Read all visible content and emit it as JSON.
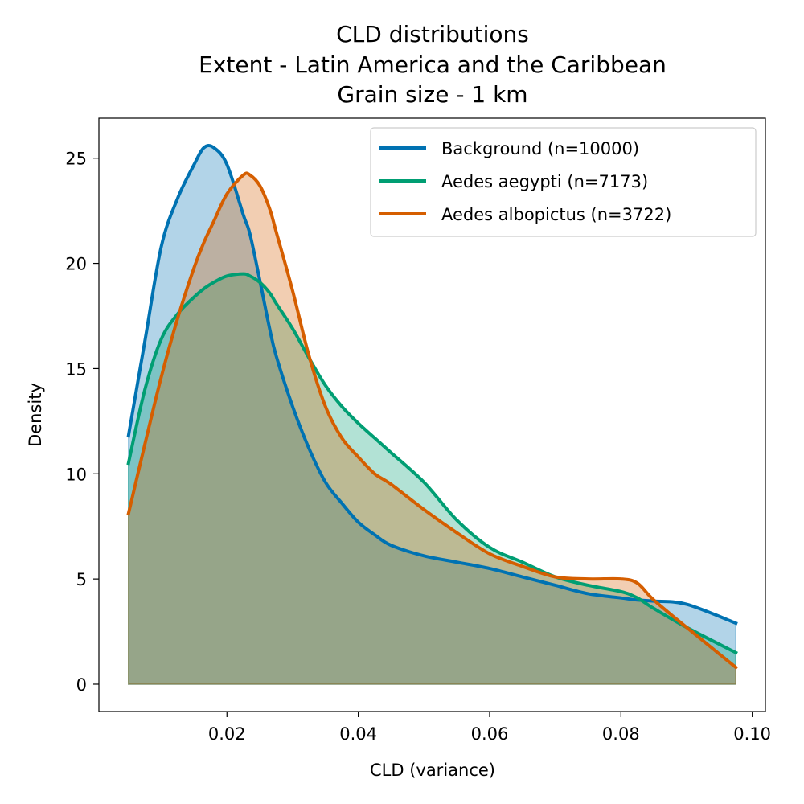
{
  "chart_data": {
    "type": "area",
    "title_lines": [
      "CLD distributions",
      "Extent - Latin America and the Caribbean",
      "Grain size - 1 km"
    ],
    "xlabel": "CLD (variance)",
    "ylabel": "Density",
    "xlim": [
      0.0005,
      0.102
    ],
    "ylim": [
      -1.3,
      26.9
    ],
    "xticks": [
      0.02,
      0.04,
      0.06,
      0.08,
      0.1
    ],
    "xtick_labels": [
      "0.02",
      "0.04",
      "0.06",
      "0.08",
      "0.10"
    ],
    "yticks": [
      0,
      5,
      10,
      15,
      20,
      25
    ],
    "ytick_labels": [
      "0",
      "5",
      "10",
      "15",
      "20",
      "25"
    ],
    "grid": false,
    "legend_position": "top-right",
    "x": [
      0.005,
      0.0075,
      0.01,
      0.0125,
      0.015,
      0.0165,
      0.018,
      0.02,
      0.0225,
      0.0235,
      0.025,
      0.0265,
      0.0275,
      0.03,
      0.0325,
      0.035,
      0.0375,
      0.04,
      0.0425,
      0.045,
      0.05,
      0.055,
      0.06,
      0.065,
      0.07,
      0.075,
      0.08,
      0.0825,
      0.085,
      0.09,
      0.0975
    ],
    "series": [
      {
        "name": "Background (n=10000)",
        "color": "#0072b2",
        "fill": "#0072b2",
        "values": [
          11.8,
          16.3,
          20.8,
          23.1,
          24.7,
          25.5,
          25.5,
          24.7,
          22.3,
          21.4,
          19.2,
          16.9,
          15.6,
          13.2,
          11.2,
          9.6,
          8.6,
          7.7,
          7.1,
          6.6,
          6.1,
          5.8,
          5.5,
          5.1,
          4.7,
          4.3,
          4.1,
          4.0,
          3.95,
          3.8,
          2.9
        ]
      },
      {
        "name": "Aedes aegypti (n=7173)",
        "color": "#009e73",
        "fill": "#009e73",
        "values": [
          10.5,
          14.0,
          16.4,
          17.6,
          18.4,
          18.8,
          19.1,
          19.4,
          19.5,
          19.4,
          19.1,
          18.6,
          18.1,
          16.9,
          15.5,
          14.2,
          13.2,
          12.4,
          11.7,
          11.0,
          9.6,
          7.8,
          6.5,
          5.8,
          5.1,
          4.7,
          4.4,
          4.1,
          3.6,
          2.7,
          1.5
        ]
      },
      {
        "name": "Aedes albopictus (n=3722)",
        "color": "#d55e00",
        "fill": "#d55e00",
        "values": [
          8.1,
          11.4,
          14.6,
          17.4,
          19.8,
          21.0,
          22.0,
          23.3,
          24.2,
          24.2,
          23.7,
          22.6,
          21.5,
          18.7,
          15.6,
          13.2,
          11.7,
          10.8,
          10.0,
          9.5,
          8.3,
          7.2,
          6.2,
          5.6,
          5.1,
          5.0,
          5.0,
          4.8,
          4.0,
          2.7,
          0.8
        ]
      }
    ]
  }
}
